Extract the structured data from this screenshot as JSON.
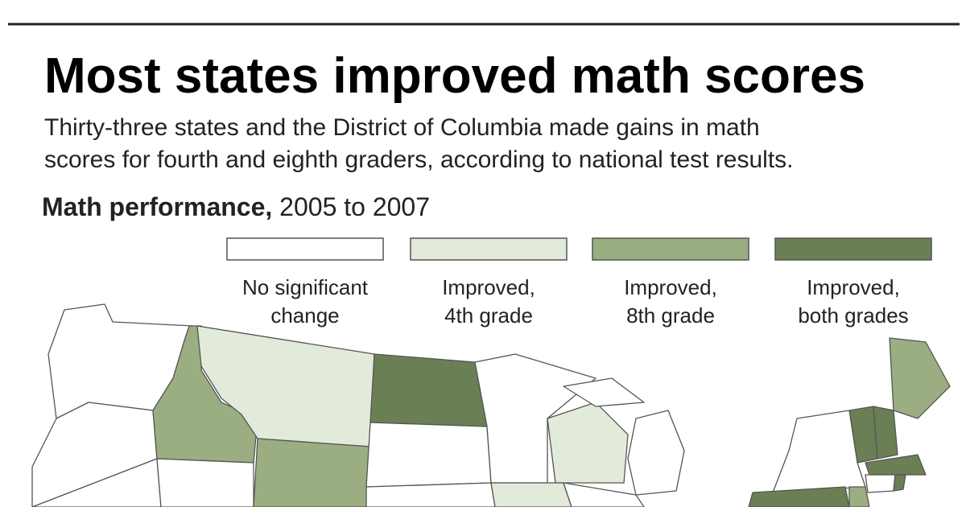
{
  "header": {
    "title": "Most states improved math scores",
    "description": [
      "Thirty-three states and the District of Columbia made gains in math",
      "scores for fourth and eighth graders, according to national test results."
    ],
    "subtitle_bold": "Math performance,",
    "subtitle_rest": "2005 to 2007"
  },
  "legend": [
    {
      "color": "#ffffff",
      "label": [
        "No significant",
        "change"
      ]
    },
    {
      "color": "#e2ebd9",
      "label": [
        "Improved,",
        "4th grade"
      ]
    },
    {
      "color": "#9bae81",
      "label": [
        "Improved,",
        "8th grade"
      ]
    },
    {
      "color": "#6b7f55",
      "label": [
        "Improved,",
        "both grades"
      ]
    }
  ]
}
